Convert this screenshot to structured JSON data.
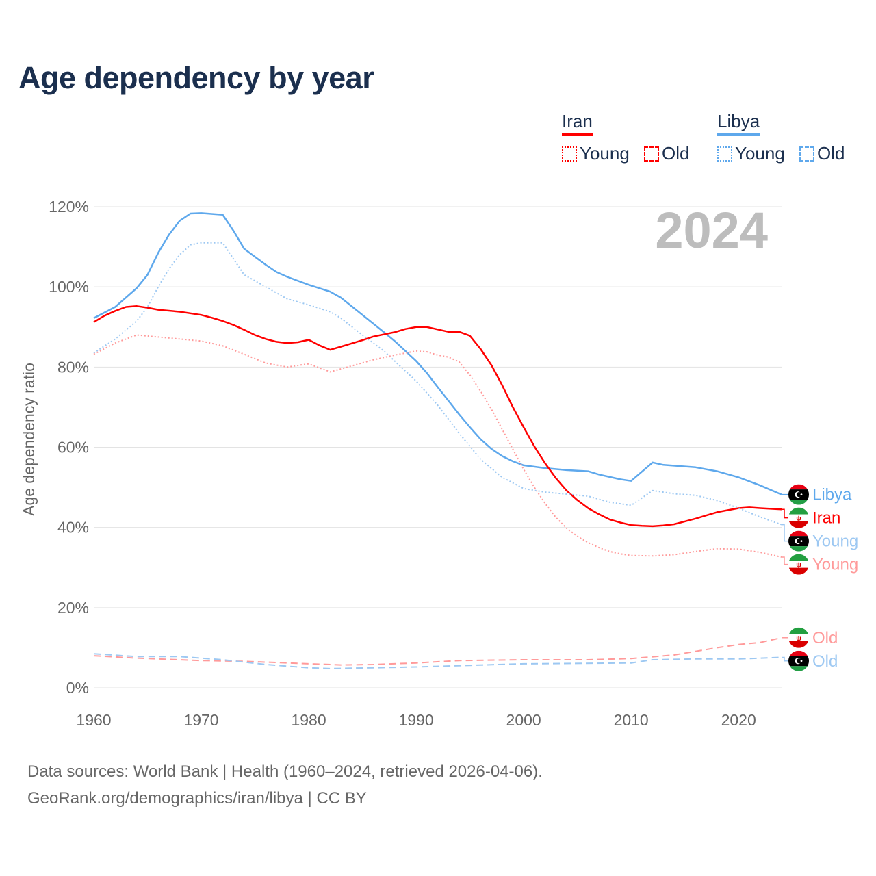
{
  "chart_data": {
    "type": "line",
    "title": "Age dependency by year",
    "ylabel": "Age dependency ratio",
    "xlabel": "",
    "xlim": [
      1960,
      2024
    ],
    "ylim": [
      0,
      120
    ],
    "x_ticks": [
      "1960",
      "1970",
      "1980",
      "1990",
      "2000",
      "2010",
      "2020"
    ],
    "y_ticks": [
      "0%",
      "20%",
      "40%",
      "60%",
      "80%",
      "100%",
      "120%"
    ],
    "year_watermark": "2024",
    "grid": true,
    "legend": {
      "placement": "top-right",
      "groups": [
        {
          "name": "Iran",
          "items": [
            "Young",
            "Old"
          ]
        },
        {
          "name": "Libya",
          "items": [
            "Young",
            "Old"
          ]
        }
      ]
    },
    "series": [
      {
        "name": "Libya",
        "label": "Libya",
        "country": "libya",
        "style": "solid",
        "color": "#5ea8ec",
        "points": [
          [
            1960,
            92.2
          ],
          [
            1962,
            95
          ],
          [
            1964,
            99.7
          ],
          [
            1965,
            103
          ],
          [
            1966,
            108.5
          ],
          [
            1967,
            113
          ],
          [
            1968,
            116.5
          ],
          [
            1969,
            118.3
          ],
          [
            1970,
            118.4
          ],
          [
            1972,
            118
          ],
          [
            1973,
            114
          ],
          [
            1974,
            109.5
          ],
          [
            1975,
            107.5
          ],
          [
            1976,
            105.5
          ],
          [
            1977,
            103.7
          ],
          [
            1978,
            102.5
          ],
          [
            1980,
            100.5
          ],
          [
            1982,
            98.8
          ],
          [
            1983,
            97.3
          ],
          [
            1985,
            93
          ],
          [
            1987,
            88.7
          ],
          [
            1988,
            86.5
          ],
          [
            1990,
            81.5
          ],
          [
            1991,
            78.5
          ],
          [
            1992,
            75
          ],
          [
            1993,
            71.6
          ],
          [
            1994,
            68.2
          ],
          [
            1995,
            65
          ],
          [
            1996,
            62
          ],
          [
            1997,
            59.6
          ],
          [
            1998,
            57.8
          ],
          [
            1999,
            56.5
          ],
          [
            2000,
            55.5
          ],
          [
            2002,
            54.8
          ],
          [
            2004,
            54.3
          ],
          [
            2006,
            54
          ],
          [
            2007,
            53.2
          ],
          [
            2009,
            52
          ],
          [
            2010,
            51.6
          ],
          [
            2012,
            56.2
          ],
          [
            2013,
            55.6
          ],
          [
            2016,
            55
          ],
          [
            2018,
            54
          ],
          [
            2020,
            52.5
          ],
          [
            2022,
            50.5
          ],
          [
            2024,
            48.2
          ]
        ]
      },
      {
        "name": "Iran",
        "label": "Iran",
        "country": "iran",
        "style": "solid",
        "color": "#ff0000",
        "points": [
          [
            1960,
            91.2
          ],
          [
            1961,
            92.8
          ],
          [
            1962,
            94
          ],
          [
            1963,
            95
          ],
          [
            1964,
            95.2
          ],
          [
            1965,
            94.8
          ],
          [
            1966,
            94.3
          ],
          [
            1968,
            93.8
          ],
          [
            1970,
            93
          ],
          [
            1971,
            92.3
          ],
          [
            1972,
            91.5
          ],
          [
            1973,
            90.5
          ],
          [
            1974,
            89.3
          ],
          [
            1975,
            88
          ],
          [
            1976,
            87
          ],
          [
            1977,
            86.3
          ],
          [
            1978,
            86
          ],
          [
            1979,
            86.2
          ],
          [
            1980,
            86.8
          ],
          [
            1981,
            85.4
          ],
          [
            1982,
            84.3
          ],
          [
            1983,
            85.1
          ],
          [
            1985,
            86.7
          ],
          [
            1986,
            87.6
          ],
          [
            1988,
            88.7
          ],
          [
            1989,
            89.5
          ],
          [
            1990,
            90
          ],
          [
            1991,
            90
          ],
          [
            1992,
            89.4
          ],
          [
            1993,
            88.8
          ],
          [
            1994,
            88.8
          ],
          [
            1995,
            87.8
          ],
          [
            1996,
            84.5
          ],
          [
            1997,
            80.5
          ],
          [
            1998,
            75.5
          ],
          [
            1999,
            70
          ],
          [
            2000,
            65
          ],
          [
            2001,
            60.2
          ],
          [
            2002,
            56
          ],
          [
            2003,
            52.3
          ],
          [
            2004,
            49.2
          ],
          [
            2005,
            46.8
          ],
          [
            2006,
            44.8
          ],
          [
            2007,
            43.3
          ],
          [
            2008,
            42
          ],
          [
            2009,
            41.2
          ],
          [
            2010,
            40.6
          ],
          [
            2011,
            40.4
          ],
          [
            2012,
            40.3
          ],
          [
            2013,
            40.5
          ],
          [
            2014,
            40.8
          ],
          [
            2015,
            41.5
          ],
          [
            2016,
            42.2
          ],
          [
            2017,
            43
          ],
          [
            2018,
            43.8
          ],
          [
            2020,
            44.8
          ],
          [
            2021,
            45
          ],
          [
            2022,
            44.8
          ],
          [
            2024,
            44.5
          ]
        ]
      },
      {
        "name": "Libya Young",
        "label": "Young",
        "country": "libya",
        "style": "dotted",
        "color": "#9dc8f2",
        "points": [
          [
            1960,
            83.5
          ],
          [
            1962,
            87
          ],
          [
            1964,
            91.5
          ],
          [
            1965,
            95
          ],
          [
            1966,
            100
          ],
          [
            1967,
            104.5
          ],
          [
            1968,
            108
          ],
          [
            1969,
            110.5
          ],
          [
            1970,
            111
          ],
          [
            1972,
            111
          ],
          [
            1973,
            107
          ],
          [
            1974,
            103
          ],
          [
            1976,
            100
          ],
          [
            1978,
            97
          ],
          [
            1980,
            95.5
          ],
          [
            1982,
            93.8
          ],
          [
            1983,
            92.2
          ],
          [
            1985,
            88
          ],
          [
            1987,
            84
          ],
          [
            1990,
            76.5
          ],
          [
            1992,
            70.5
          ],
          [
            1994,
            63.5
          ],
          [
            1996,
            57
          ],
          [
            1998,
            52.5
          ],
          [
            2000,
            49.7
          ],
          [
            2002,
            48.8
          ],
          [
            2004,
            48.3
          ],
          [
            2006,
            47.8
          ],
          [
            2008,
            46.3
          ],
          [
            2010,
            45.5
          ],
          [
            2012,
            49.2
          ],
          [
            2014,
            48.4
          ],
          [
            2016,
            48
          ],
          [
            2018,
            46.7
          ],
          [
            2020,
            44.8
          ],
          [
            2022,
            42.6
          ],
          [
            2024,
            40.7
          ]
        ]
      },
      {
        "name": "Iran Young",
        "label": "Young",
        "country": "iran",
        "style": "dotted",
        "color": "#ff9a9a",
        "points": [
          [
            1960,
            83.2
          ],
          [
            1962,
            86
          ],
          [
            1964,
            88
          ],
          [
            1966,
            87.5
          ],
          [
            1968,
            87
          ],
          [
            1970,
            86.5
          ],
          [
            1972,
            85.3
          ],
          [
            1974,
            83.2
          ],
          [
            1976,
            81
          ],
          [
            1978,
            80
          ],
          [
            1980,
            80.8
          ],
          [
            1982,
            78.8
          ],
          [
            1984,
            80.3
          ],
          [
            1986,
            81.8
          ],
          [
            1988,
            83
          ],
          [
            1990,
            84
          ],
          [
            1991,
            83.8
          ],
          [
            1992,
            83
          ],
          [
            1993,
            82.5
          ],
          [
            1994,
            81.3
          ],
          [
            1995,
            78
          ],
          [
            1996,
            74
          ],
          [
            1997,
            69.5
          ],
          [
            1998,
            64.5
          ],
          [
            1999,
            59.5
          ],
          [
            2000,
            54.5
          ],
          [
            2001,
            50
          ],
          [
            2002,
            46
          ],
          [
            2003,
            42.5
          ],
          [
            2004,
            39.8
          ],
          [
            2005,
            37.8
          ],
          [
            2006,
            36.2
          ],
          [
            2007,
            35
          ],
          [
            2008,
            34
          ],
          [
            2009,
            33.4
          ],
          [
            2010,
            33
          ],
          [
            2012,
            32.9
          ],
          [
            2014,
            33.2
          ],
          [
            2016,
            34
          ],
          [
            2018,
            34.7
          ],
          [
            2020,
            34.6
          ],
          [
            2022,
            33.8
          ],
          [
            2024,
            32.6
          ]
        ]
      },
      {
        "name": "Iran Old",
        "label": "Old",
        "country": "iran",
        "style": "dashed",
        "color": "#ff9a9a",
        "points": [
          [
            1960,
            8
          ],
          [
            1964,
            7.4
          ],
          [
            1970,
            6.8
          ],
          [
            1974,
            6.6
          ],
          [
            1980,
            6
          ],
          [
            1983,
            5.7
          ],
          [
            1986,
            5.8
          ],
          [
            1990,
            6.2
          ],
          [
            1994,
            6.8
          ],
          [
            2000,
            7
          ],
          [
            2006,
            7
          ],
          [
            2010,
            7.3
          ],
          [
            2014,
            8.2
          ],
          [
            2018,
            10
          ],
          [
            2020,
            10.8
          ],
          [
            2022,
            11.3
          ],
          [
            2024,
            12.5
          ]
        ]
      },
      {
        "name": "Libya Old",
        "label": "Old",
        "country": "libya",
        "style": "dashed",
        "color": "#9dc8f2",
        "points": [
          [
            1960,
            8.5
          ],
          [
            1964,
            7.8
          ],
          [
            1968,
            7.8
          ],
          [
            1972,
            7
          ],
          [
            1976,
            5.8
          ],
          [
            1980,
            5
          ],
          [
            1982,
            4.8
          ],
          [
            1986,
            5
          ],
          [
            1990,
            5.2
          ],
          [
            2000,
            6
          ],
          [
            2010,
            6.2
          ],
          [
            2012,
            7
          ],
          [
            2016,
            7.2
          ],
          [
            2020,
            7.2
          ],
          [
            2024,
            7.6
          ]
        ]
      }
    ]
  },
  "sources": {
    "line1": "Data sources: World Bank | Health (1960–2024, retrieved 2026-04-06).",
    "line2": "GeoRank.org/demographics/iran/libya | CC BY"
  }
}
